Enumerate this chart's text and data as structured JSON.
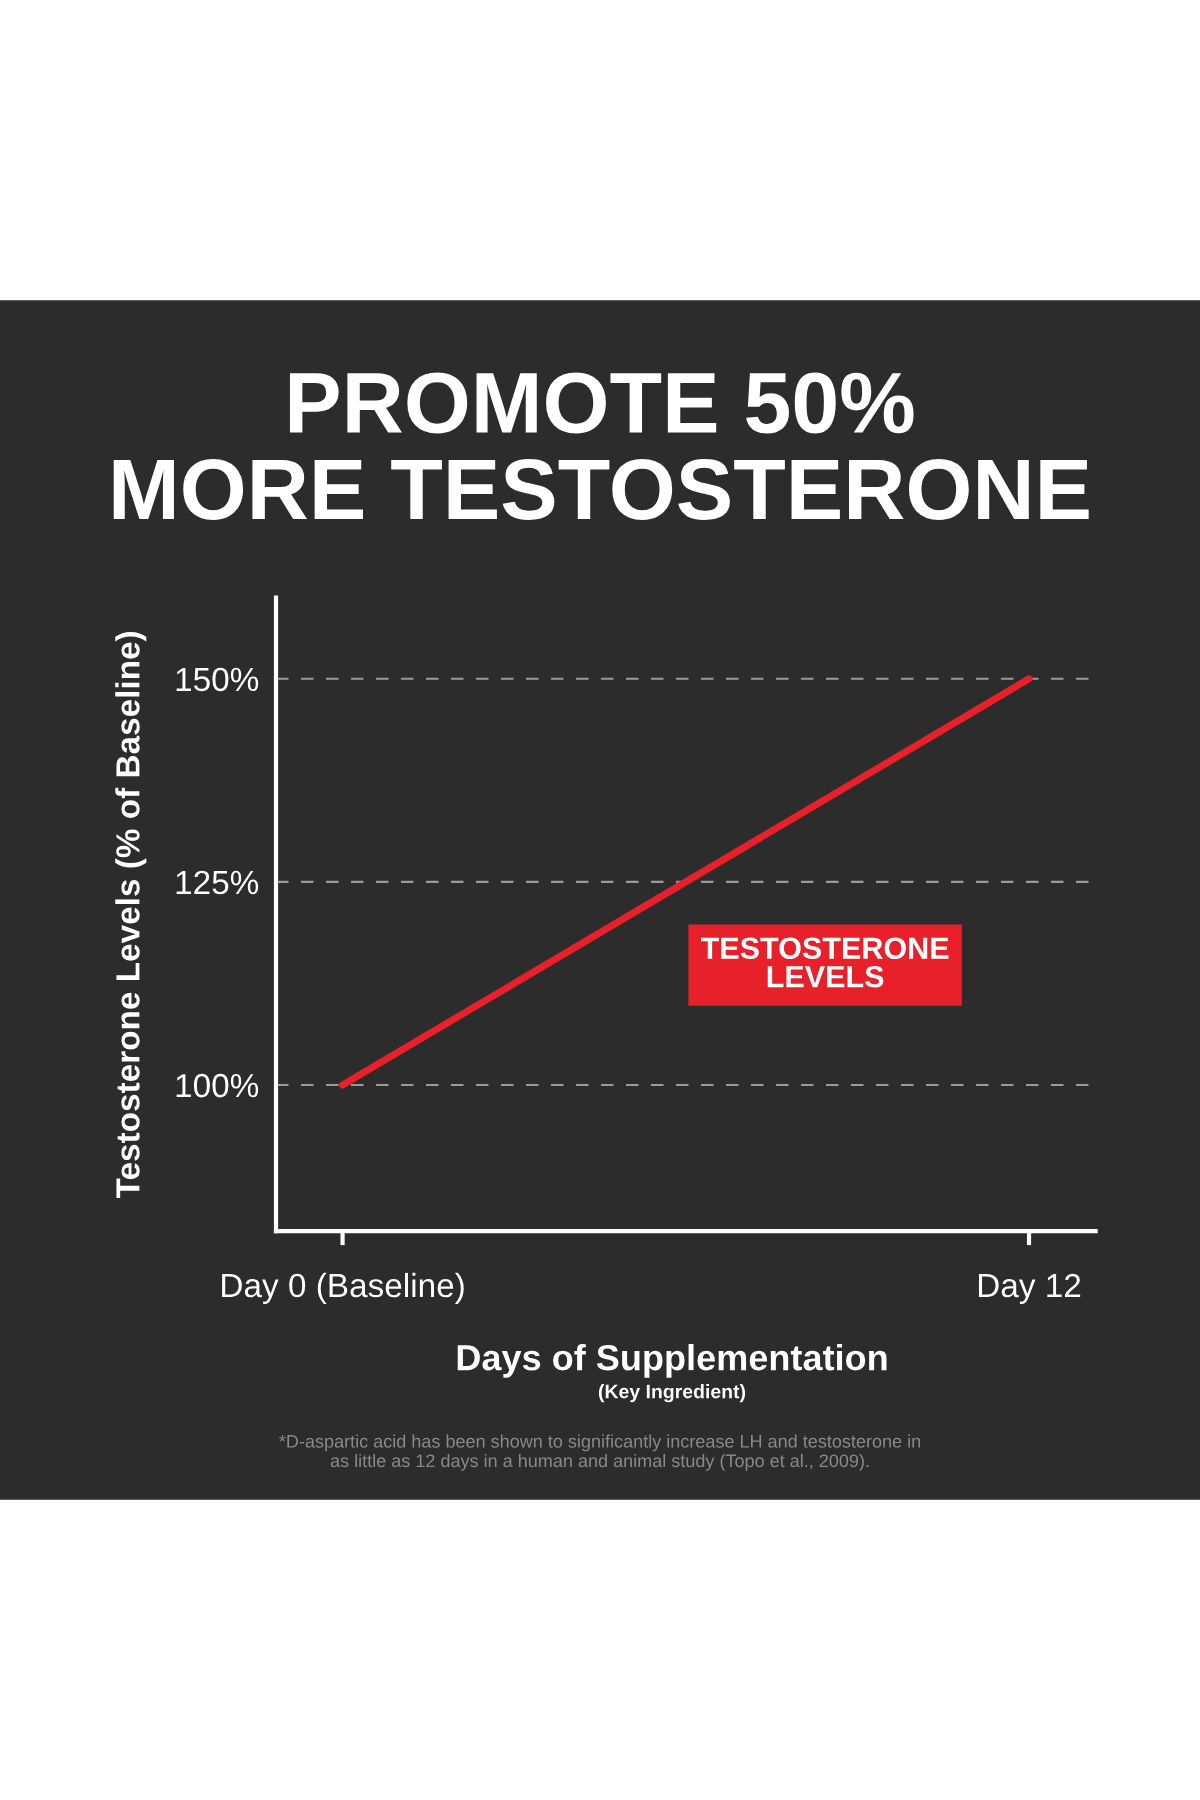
{
  "chart_data": {
    "type": "line",
    "title": "PROMOTE 50%\nMORE TESTOSTERONE",
    "xlabel": "Days of Supplementation",
    "subtitle": "(Key Ingredient)",
    "ylabel": "Testosterone Levels (% of Baseline)",
    "categories": [
      "Day 0 (Baseline)",
      "Day 12"
    ],
    "series": [
      {
        "name": "TESTOSTERONE\nLEVELS",
        "color": "#e8202a",
        "values": [
          100,
          150
        ]
      }
    ],
    "ylim": [
      82,
      160
    ],
    "yticks": [
      {
        "value": 100,
        "label": "100%"
      },
      {
        "value": 125,
        "label": "125%"
      },
      {
        "value": 150,
        "label": "150%"
      }
    ],
    "ref_lines": [
      {
        "axis": "y",
        "value": 100,
        "label": null,
        "color": "#9a9a9a",
        "line_style": "dashed"
      },
      {
        "axis": "y",
        "value": 125,
        "label": null,
        "color": "#9a9a9a",
        "line_style": "dashed"
      },
      {
        "axis": "y",
        "value": 150,
        "label": null,
        "color": "#9a9a9a",
        "line_style": "dashed"
      }
    ],
    "line_style": "solid",
    "annotations": [
      "*D-aspartic acid has been shown to significantly increase LH and testosterone in\nas little as 12 days in a human and animal study (Topo et al., 2009)."
    ]
  }
}
